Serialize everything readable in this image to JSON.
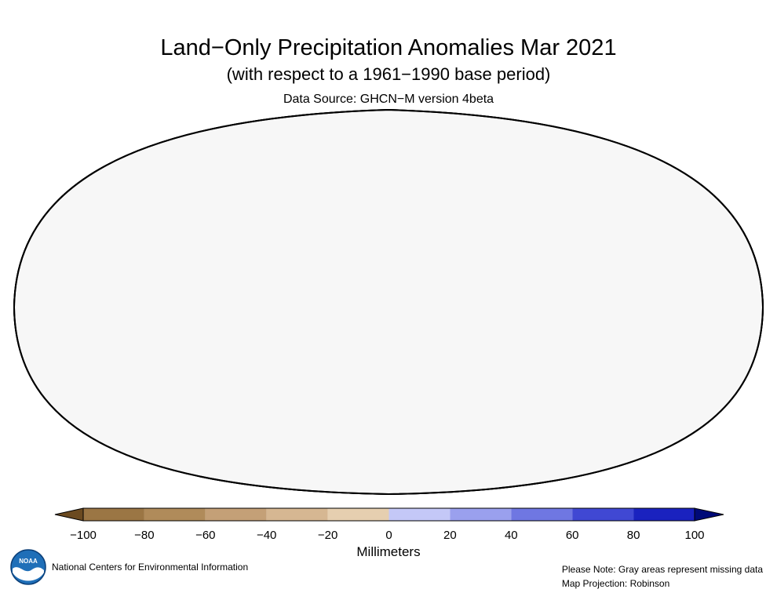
{
  "title": "Land−Only Precipitation Anomalies Mar 2021",
  "subtitle": "(with respect to a 1961−1990 base period)",
  "source": "Data Source: GHCN−M version 4beta",
  "colorbar": {
    "unit": "Millimeters",
    "ticks": [
      "−100",
      "−80",
      "−60",
      "−40",
      "−20",
      "0",
      "20",
      "40",
      "60",
      "80",
      "100"
    ],
    "colors": [
      "#9b7644",
      "#b08b5a",
      "#c4a077",
      "#d6b792",
      "#e6cfb0",
      "#c4c8f7",
      "#9aa0ee",
      "#6f77e2",
      "#4048d3",
      "#1a22bf"
    ],
    "under_color": "#6b4a20",
    "over_color": "#000a78"
  },
  "colors": {
    "ocean": "#f7f7f7",
    "missing_land": "#a6a6a6",
    "border": "#000000"
  },
  "logo": {
    "text": "NOAA"
  },
  "footer": {
    "organization": "National Centers for Environmental Information",
    "note": "Please Note: Gray areas represent missing data",
    "projection": "Map Projection: Robinson"
  }
}
